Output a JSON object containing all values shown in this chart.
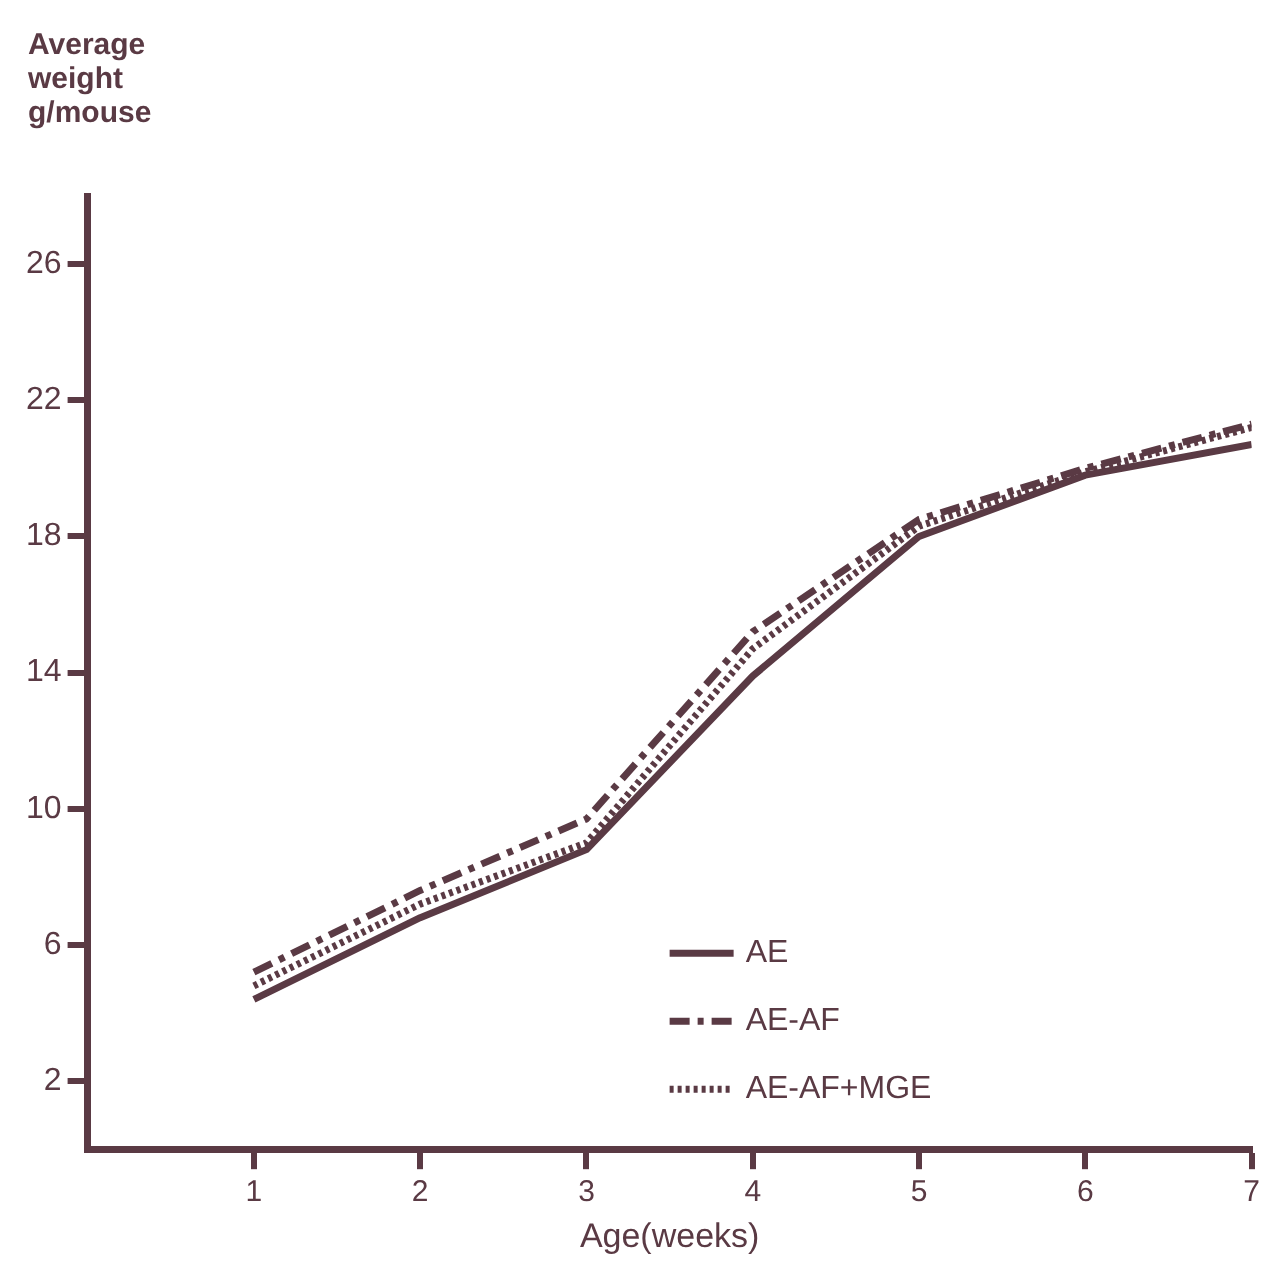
{
  "chart_data": {
    "type": "line",
    "ylabel": "Average weight g/mouse",
    "xlabel": "Age(weeks)",
    "x": [
      1,
      2,
      3,
      4,
      5,
      6,
      7
    ],
    "series": [
      {
        "name": "AE",
        "color": "#5a3a44",
        "line_style": "solid",
        "values": [
          4.4,
          6.8,
          8.8,
          13.9,
          18.0,
          19.8,
          20.7
        ]
      },
      {
        "name": "AE-AF",
        "color": "#5a3a44",
        "line_style": "dashdot",
        "values": [
          5.2,
          7.6,
          9.7,
          15.2,
          18.5,
          20.0,
          21.3
        ]
      },
      {
        "name": "AE-AF+MGE",
        "color": "#5a3a44",
        "line_style": "dotted",
        "values": [
          4.8,
          7.2,
          9.0,
          14.7,
          18.3,
          19.9,
          21.2
        ]
      }
    ],
    "xlim": [
      0,
      7
    ],
    "xticks": [
      1,
      2,
      3,
      4,
      5,
      6,
      7
    ],
    "ylim": [
      0,
      28
    ],
    "yticks": [
      2,
      6,
      10,
      14,
      18,
      22,
      26
    ],
    "grid": false,
    "legend": "bottom right",
    "marker": "none"
  }
}
